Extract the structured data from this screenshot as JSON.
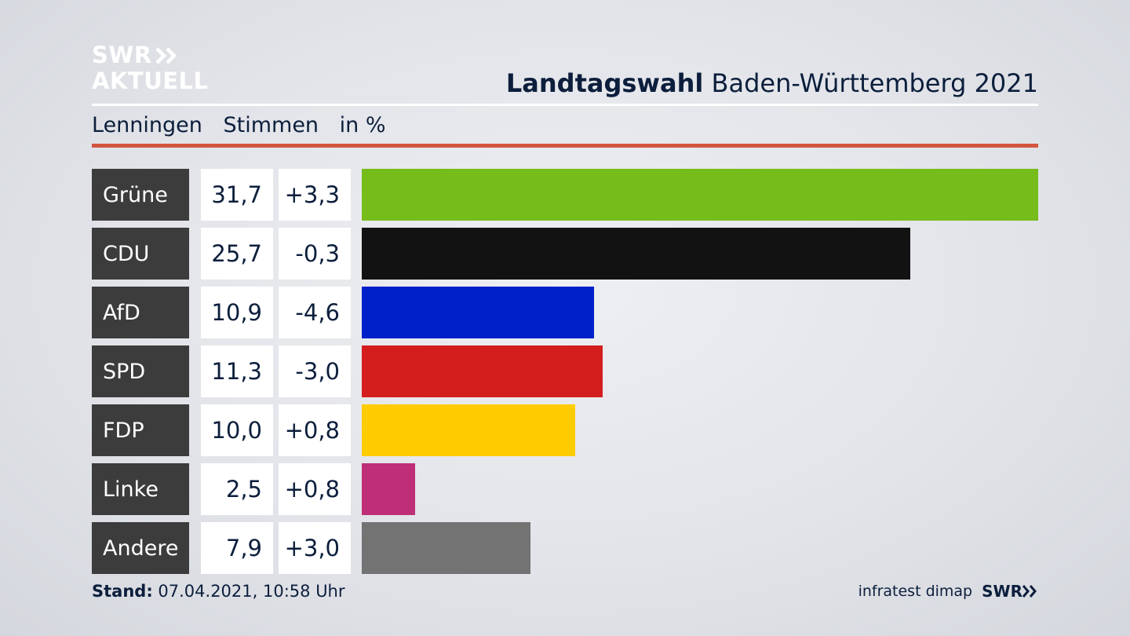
{
  "brand": {
    "line1": "SWR",
    "line2": "AKTUELL"
  },
  "header": {
    "title_bold": "Landtagswahl",
    "title_rest": "Baden-Württemberg 2021"
  },
  "subheader": {
    "place": "Lenningen",
    "measure": "Stimmen",
    "unit": "in %"
  },
  "colors": {
    "accent_rule": "#d3553e",
    "label_bg": "#3c3c3c"
  },
  "chart_data": {
    "type": "bar",
    "orientation": "horizontal",
    "categories": [
      "Grüne",
      "CDU",
      "AfD",
      "SPD",
      "FDP",
      "Linke",
      "Andere"
    ],
    "values": [
      31.7,
      25.7,
      10.9,
      11.3,
      10.0,
      2.5,
      7.9
    ],
    "values_label": [
      "31,7",
      "25,7",
      "10,9",
      "11,3",
      "10,0",
      "2,5",
      "7,9"
    ],
    "changes_label": [
      "+3,3",
      "-0,3",
      "-4,6",
      "-3,0",
      "+0,8",
      "+0,8",
      "+3,0"
    ],
    "colors": [
      "#76bc1b",
      "#121212",
      "#0020c9",
      "#d41e1e",
      "#ffcc00",
      "#be2f78",
      "#737373"
    ],
    "xlim": [
      0,
      31.7
    ],
    "grid": false
  },
  "footer": {
    "stand_label": "Stand:",
    "stand_value": "07.04.2021, 10:58 Uhr",
    "source": "infratest dimap",
    "logo": "SWR"
  }
}
